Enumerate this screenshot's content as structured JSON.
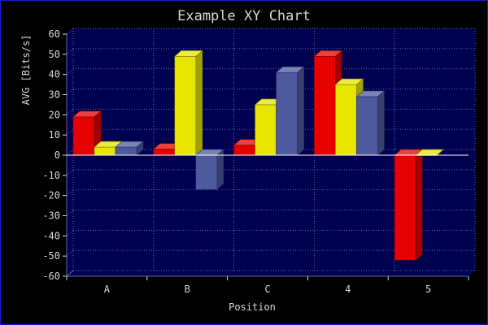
{
  "chart_data": {
    "type": "bar",
    "title": "Example XY Chart",
    "xlabel": "Position",
    "ylabel": "AVG [Bits/s]",
    "categories": [
      "A",
      "B",
      "C",
      "4",
      "5"
    ],
    "ylim": [
      -60,
      60
    ],
    "yticks": [
      -60,
      -50,
      -40,
      -30,
      -20,
      -10,
      0,
      10,
      20,
      30,
      40,
      50,
      60
    ],
    "grid": true,
    "style": "3d",
    "series": [
      {
        "color": "#e60000",
        "values": [
          19,
          3,
          5,
          49,
          -52
        ]
      },
      {
        "color": "#e6e600",
        "values": [
          4,
          49,
          25,
          35,
          0
        ]
      },
      {
        "color": "#4d5a9e",
        "values": [
          4,
          -17,
          41,
          29,
          null
        ]
      }
    ]
  },
  "colors": {
    "background": "#000000",
    "plot_background": "#000050",
    "grid": "#6464b4",
    "text": "#d8d8d8",
    "frame_border": "#1b1bd6"
  }
}
